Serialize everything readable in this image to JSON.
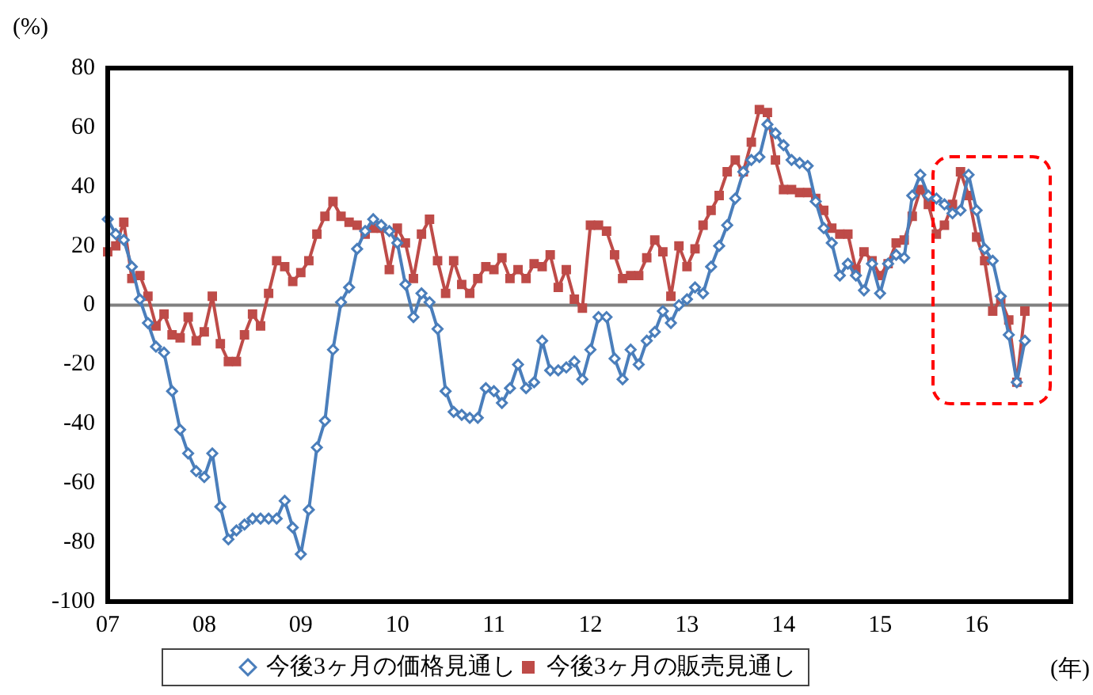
{
  "chart_data": {
    "type": "line",
    "ylabel": "(%)",
    "xlabel": "(年)",
    "categories": [
      "07",
      null,
      null,
      null,
      null,
      null,
      null,
      null,
      null,
      null,
      null,
      null,
      "08",
      null,
      null,
      null,
      null,
      null,
      null,
      null,
      null,
      null,
      null,
      null,
      "09",
      null,
      null,
      null,
      null,
      null,
      null,
      null,
      null,
      null,
      null,
      null,
      "10",
      null,
      null,
      null,
      null,
      null,
      null,
      null,
      null,
      null,
      null,
      null,
      "11",
      null,
      null,
      null,
      null,
      null,
      null,
      null,
      null,
      null,
      null,
      null,
      "12",
      null,
      null,
      null,
      null,
      null,
      null,
      null,
      null,
      null,
      null,
      null,
      "13",
      null,
      null,
      null,
      null,
      null,
      null,
      null,
      null,
      null,
      null,
      null,
      "14",
      null,
      null,
      null,
      null,
      null,
      null,
      null,
      null,
      null,
      null,
      null,
      "15",
      null,
      null,
      null,
      null,
      null,
      null,
      null,
      null,
      null,
      null,
      null,
      "16",
      null,
      null,
      null,
      null,
      null,
      null
    ],
    "series": [
      {
        "name": "今後3ヶ月の価格見通し",
        "color": "#4a7ebb",
        "marker": "diamond",
        "values": [
          29,
          24,
          22,
          13,
          2,
          -6,
          -14,
          -16,
          -29,
          -42,
          -50,
          -56,
          -58,
          -50,
          -68,
          -79,
          -76,
          -74,
          -72,
          -72,
          -72,
          -72,
          -66,
          -75,
          -84,
          -69,
          -48,
          -39,
          -15,
          1,
          6,
          19,
          25,
          29,
          27,
          25,
          21,
          7,
          -4,
          4,
          1,
          -8,
          -29,
          -36,
          -37,
          -38,
          -38,
          -28,
          -29,
          -33,
          -28,
          -20,
          -28,
          -26,
          -12,
          -22,
          -22,
          -21,
          -19,
          -25,
          -15,
          -4,
          -4,
          -18,
          -25,
          -15,
          -20,
          -12,
          -9,
          -2,
          -6,
          0,
          2,
          6,
          4,
          13,
          20,
          27,
          36,
          45,
          49,
          50,
          61,
          58,
          54,
          49,
          48,
          47,
          35,
          26,
          21,
          10,
          14,
          10,
          5,
          14,
          4,
          14,
          17,
          16,
          37,
          44,
          37,
          36,
          34,
          31,
          32,
          44,
          32,
          19,
          15,
          3,
          -10,
          -26,
          -12
        ]
      },
      {
        "name": "今後3ヶ月の販売見通し",
        "color": "#be4b48",
        "marker": "square",
        "values": [
          18,
          20,
          28,
          9,
          10,
          3,
          -7,
          -3,
          -10,
          -11,
          -4,
          -12,
          -9,
          3,
          -13,
          -19,
          -19,
          -10,
          -3,
          -7,
          4,
          15,
          13,
          8,
          11,
          15,
          24,
          30,
          35,
          30,
          28,
          27,
          24,
          26,
          26,
          12,
          26,
          21,
          9,
          24,
          29,
          15,
          4,
          15,
          7,
          4,
          9,
          13,
          12,
          16,
          9,
          12,
          9,
          14,
          13,
          17,
          6,
          12,
          2,
          -1,
          27,
          27,
          25,
          17,
          9,
          10,
          10,
          16,
          22,
          18,
          3,
          20,
          13,
          19,
          27,
          32,
          37,
          45,
          49,
          45,
          55,
          66,
          65,
          49,
          39,
          39,
          38,
          38,
          36,
          32,
          26,
          24,
          24,
          12,
          18,
          15,
          10,
          14,
          21,
          22,
          30,
          39,
          34,
          24,
          27,
          34,
          45,
          37,
          23,
          15,
          -2,
          2,
          -5,
          -26,
          -2
        ]
      }
    ],
    "ylim": [
      -100,
      80
    ],
    "yticks": [
      -100,
      -80,
      -60,
      -40,
      -20,
      0,
      20,
      40,
      60,
      80
    ],
    "ref_lines": [
      {
        "axis": "y",
        "value": 0,
        "color": "#808080"
      }
    ],
    "grid": false,
    "legend": "bottom"
  }
}
